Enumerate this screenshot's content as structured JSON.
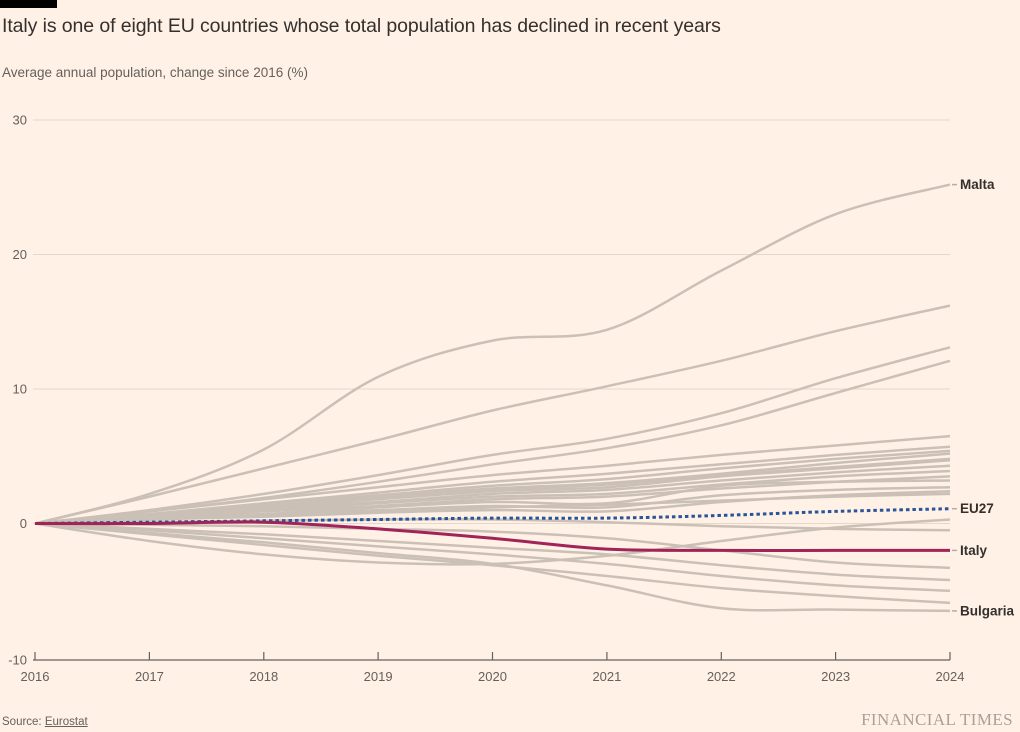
{
  "page": {
    "background": "#FFF1E5"
  },
  "header": {
    "title": "Italy is one of eight EU countries whose total population has declined in recent years",
    "subtitle": "Average annual population, change since 2016 (%)"
  },
  "footer": {
    "source_prefix": "Source:",
    "source_link": "Eurostat",
    "brand": "FINANCIAL TIMES"
  },
  "chart_data": {
    "type": "line",
    "title": "Italy is one of eight EU countries whose total population has declined in recent years",
    "subtitle": "Average annual population, change since 2016 (%)",
    "x": [
      2016,
      2017,
      2018,
      2019,
      2020,
      2021,
      2022,
      2023,
      2024
    ],
    "xticks": [
      "2016",
      "2017",
      "2018",
      "2019",
      "2020",
      "2021",
      "2022",
      "2023",
      "2024"
    ],
    "yticks": [
      30,
      20,
      10,
      0,
      -10
    ],
    "ylim": [
      -10,
      30
    ],
    "grid": true,
    "legend_position": "right-edge-labels",
    "colors": {
      "country": "#CBC0B6",
      "eu27": "#27549B",
      "italy": "#A0235A",
      "grid": "#E5D8CA",
      "axis": "#66605C",
      "tick_text": "#66605C",
      "label_text": "#33302E",
      "leader": "#B5ACA2"
    },
    "series": [
      {
        "name": "Malta",
        "role": "country",
        "label": true,
        "values": [
          0,
          2.2,
          5.5,
          10.9,
          13.6,
          14.4,
          18.8,
          23.0,
          25.2
        ]
      },
      {
        "role": "country",
        "label": false,
        "values": [
          0,
          2.0,
          4.1,
          6.2,
          8.4,
          10.2,
          12.1,
          14.3,
          16.2
        ]
      },
      {
        "role": "country",
        "label": false,
        "values": [
          0,
          1.0,
          2.2,
          3.6,
          5.1,
          6.3,
          8.2,
          10.8,
          13.1
        ]
      },
      {
        "role": "country",
        "label": false,
        "values": [
          0,
          0.9,
          1.9,
          3.1,
          4.4,
          5.6,
          7.3,
          9.7,
          12.1
        ]
      },
      {
        "role": "country",
        "label": false,
        "values": [
          0,
          0.9,
          1.8,
          2.7,
          3.6,
          4.3,
          5.1,
          5.8,
          6.5
        ]
      },
      {
        "role": "country",
        "label": false,
        "values": [
          0,
          0.7,
          1.5,
          2.3,
          3.1,
          3.7,
          4.4,
          5.1,
          5.7
        ]
      },
      {
        "role": "country",
        "label": false,
        "values": [
          0,
          0.7,
          1.4,
          2.1,
          2.8,
          3.3,
          4.1,
          4.8,
          5.4
        ]
      },
      {
        "role": "country",
        "label": false,
        "values": [
          0,
          0.6,
          1.3,
          2.0,
          2.6,
          3.0,
          3.7,
          4.5,
          5.2
        ]
      },
      {
        "role": "country",
        "label": false,
        "values": [
          0,
          0.6,
          1.2,
          1.9,
          2.5,
          2.9,
          3.6,
          4.2,
          4.8
        ]
      },
      {
        "role": "country",
        "label": false,
        "values": [
          0,
          0.6,
          1.2,
          1.8,
          2.4,
          2.7,
          3.5,
          4.1,
          4.7
        ]
      },
      {
        "role": "country",
        "label": false,
        "values": [
          0,
          0.5,
          1.1,
          1.6,
          2.2,
          2.5,
          3.2,
          3.8,
          4.3
        ]
      },
      {
        "role": "country",
        "label": false,
        "values": [
          0,
          0.5,
          1.0,
          1.5,
          2.0,
          2.2,
          2.9,
          3.5,
          3.9
        ]
      },
      {
        "role": "country",
        "label": false,
        "values": [
          0,
          0.4,
          0.9,
          1.3,
          1.8,
          2.0,
          2.6,
          3.1,
          3.5
        ]
      },
      {
        "role": "country",
        "label": false,
        "values": [
          0,
          0.3,
          0.7,
          1.2,
          1.6,
          1.5,
          2.8,
          3.1,
          3.2
        ]
      },
      {
        "role": "country",
        "label": false,
        "values": [
          0,
          0.4,
          0.7,
          1.0,
          1.3,
          1.2,
          2.1,
          2.5,
          2.7
        ]
      },
      {
        "role": "country",
        "label": false,
        "values": [
          0,
          0.3,
          0.5,
          0.8,
          1.0,
          0.9,
          1.6,
          2.1,
          2.4
        ]
      },
      {
        "role": "country",
        "label": false,
        "values": [
          0,
          0.3,
          0.6,
          0.9,
          1.2,
          1.4,
          1.7,
          2.0,
          2.2
        ]
      },
      {
        "role": "country",
        "label": false,
        "values": [
          0,
          -1.3,
          -2.3,
          -2.9,
          -3.0,
          -2.4,
          -1.3,
          -0.3,
          0.3
        ]
      },
      {
        "role": "country",
        "label": false,
        "values": [
          0,
          0.1,
          0.2,
          0.3,
          0.3,
          0.1,
          -0.2,
          -0.4,
          -0.5
        ]
      },
      {
        "role": "country",
        "label": false,
        "values": [
          0,
          -0.1,
          -0.2,
          -0.4,
          -0.6,
          -1.1,
          -2.0,
          -2.9,
          -3.3
        ]
      },
      {
        "role": "country",
        "label": false,
        "values": [
          0,
          -0.4,
          -0.8,
          -1.3,
          -1.8,
          -2.3,
          -3.1,
          -3.8,
          -4.2
        ]
      },
      {
        "role": "country",
        "label": false,
        "values": [
          0,
          -0.5,
          -1.1,
          -1.7,
          -2.3,
          -3.0,
          -3.9,
          -4.6,
          -5.0
        ]
      },
      {
        "role": "country",
        "label": false,
        "values": [
          0,
          -0.8,
          -1.6,
          -2.4,
          -3.1,
          -3.9,
          -4.8,
          -5.4,
          -5.9
        ]
      },
      {
        "name": "Bulgaria",
        "role": "country",
        "label": true,
        "values": [
          0,
          -0.7,
          -1.4,
          -2.2,
          -3.0,
          -4.6,
          -6.3,
          -6.4,
          -6.5
        ]
      },
      {
        "name": "EU27",
        "role": "eu27",
        "label": true,
        "values": [
          0,
          0.1,
          0.2,
          0.3,
          0.4,
          0.4,
          0.6,
          0.9,
          1.1
        ]
      },
      {
        "name": "Italy",
        "role": "italy",
        "label": true,
        "values": [
          0,
          0.0,
          0.1,
          -0.4,
          -1.1,
          -1.9,
          -2.0,
          -2.0,
          -2.0
        ]
      }
    ]
  }
}
